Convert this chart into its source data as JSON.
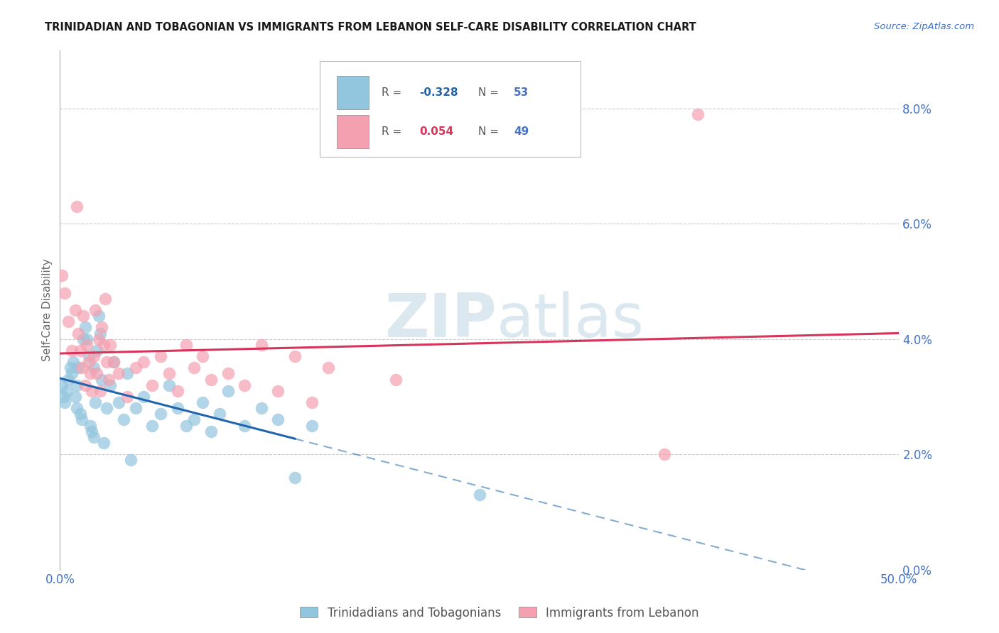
{
  "title": "TRINIDADIAN AND TOBAGONIAN VS IMMIGRANTS FROM LEBANON SELF-CARE DISABILITY CORRELATION CHART",
  "source": "Source: ZipAtlas.com",
  "ylabel": "Self-Care Disability",
  "xlim": [
    0.0,
    50.0
  ],
  "ylim": [
    0.0,
    9.0
  ],
  "ytick_vals": [
    0.0,
    2.0,
    4.0,
    6.0,
    8.0
  ],
  "ytick_labels": [
    "0.0%",
    "2.0%",
    "4.0%",
    "6.0%",
    "8.0%"
  ],
  "xtick_vals": [
    0,
    10,
    20,
    30,
    40,
    50
  ],
  "xtick_labels": [
    "0.0%",
    "",
    "",
    "",
    "",
    "50.0%"
  ],
  "blue_label": "Trinidadians and Tobagonians",
  "pink_label": "Immigrants from Lebanon",
  "blue_R": -0.328,
  "blue_N": 53,
  "pink_R": 0.054,
  "pink_N": 49,
  "blue_color": "#92c5de",
  "pink_color": "#f4a0b0",
  "trend_blue_color": "#2166ac",
  "trend_pink_color": "#d6345a",
  "title_color": "#1a1a1a",
  "axis_tick_color": "#4472c4",
  "legend_R_blue": "#2166ac",
  "legend_R_pink": "#d6345a",
  "legend_N_color": "#4472c4",
  "watermark_color": "#dce8f0",
  "grid_color": "#cccccc",
  "background_color": "#ffffff",
  "blue_scatter_x": [
    0.1,
    0.2,
    0.3,
    0.4,
    0.5,
    0.6,
    0.7,
    0.8,
    0.9,
    1.0,
    1.0,
    1.1,
    1.2,
    1.3,
    1.4,
    1.5,
    1.6,
    1.7,
    1.8,
    1.9,
    2.0,
    2.0,
    2.1,
    2.2,
    2.3,
    2.4,
    2.5,
    2.6,
    2.8,
    3.0,
    3.2,
    3.5,
    3.8,
    4.0,
    4.2,
    4.5,
    5.0,
    5.5,
    6.0,
    6.5,
    7.0,
    7.5,
    8.0,
    8.5,
    9.0,
    9.5,
    10.0,
    11.0,
    12.0,
    13.0,
    14.0,
    15.0,
    25.0
  ],
  "blue_scatter_y": [
    3.2,
    3.0,
    2.9,
    3.1,
    3.3,
    3.5,
    3.4,
    3.6,
    3.0,
    2.8,
    3.2,
    3.5,
    2.7,
    2.6,
    4.0,
    4.2,
    4.0,
    3.7,
    2.5,
    2.4,
    2.3,
    3.5,
    2.9,
    3.8,
    4.4,
    4.1,
    3.3,
    2.2,
    2.8,
    3.2,
    3.6,
    2.9,
    2.6,
    3.4,
    1.9,
    2.8,
    3.0,
    2.5,
    2.7,
    3.2,
    2.8,
    2.5,
    2.6,
    2.9,
    2.4,
    2.7,
    3.1,
    2.5,
    2.8,
    2.6,
    1.6,
    2.5,
    1.3
  ],
  "pink_scatter_x": [
    0.1,
    0.3,
    0.5,
    0.7,
    0.9,
    1.0,
    1.1,
    1.2,
    1.3,
    1.4,
    1.5,
    1.6,
    1.7,
    1.8,
    1.9,
    2.0,
    2.1,
    2.2,
    2.3,
    2.4,
    2.5,
    2.6,
    2.7,
    2.8,
    2.9,
    3.0,
    3.2,
    3.5,
    4.0,
    4.5,
    5.0,
    5.5,
    6.0,
    6.5,
    7.0,
    7.5,
    8.0,
    8.5,
    9.0,
    10.0,
    11.0,
    12.0,
    13.0,
    14.0,
    15.0,
    16.0,
    20.0,
    36.0,
    38.0
  ],
  "pink_scatter_y": [
    5.1,
    4.8,
    4.3,
    3.8,
    4.5,
    6.3,
    4.1,
    3.8,
    3.5,
    4.4,
    3.2,
    3.9,
    3.6,
    3.4,
    3.1,
    3.7,
    4.5,
    3.4,
    4.0,
    3.1,
    4.2,
    3.9,
    4.7,
    3.6,
    3.3,
    3.9,
    3.6,
    3.4,
    3.0,
    3.5,
    3.6,
    3.2,
    3.7,
    3.4,
    3.1,
    3.9,
    3.5,
    3.7,
    3.3,
    3.4,
    3.2,
    3.9,
    3.1,
    3.7,
    2.9,
    3.5,
    3.3,
    2.0,
    7.9
  ]
}
